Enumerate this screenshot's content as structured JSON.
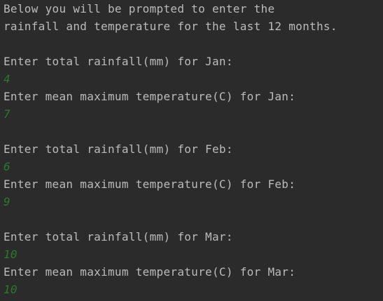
{
  "console": {
    "intro": [
      "Below you will be prompted to enter the",
      "rainfall and temperature for the last 12 months."
    ],
    "months": [
      {
        "rain_prompt": "Enter total rainfall(mm) for Jan:",
        "rain_input": "4",
        "temp_prompt": "Enter mean maximum temperature(C) for Jan:",
        "temp_input": "7"
      },
      {
        "rain_prompt": "Enter total rainfall(mm) for Feb:",
        "rain_input": "6",
        "temp_prompt": "Enter mean maximum temperature(C) for Feb:",
        "temp_input": "9"
      },
      {
        "rain_prompt": "Enter total rainfall(mm) for Mar:",
        "rain_input": "10",
        "temp_prompt": "Enter mean maximum temperature(C) for Mar:",
        "temp_input": "10"
      }
    ],
    "colors": {
      "background": "#2b2b2b",
      "output_text": "#bbbbbb",
      "user_input": "#287a28"
    }
  }
}
